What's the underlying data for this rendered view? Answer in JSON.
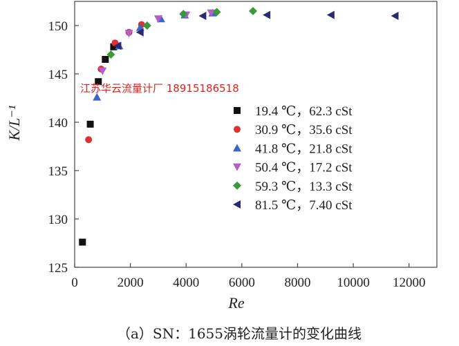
{
  "chart_data": {
    "type": "scatter",
    "xlabel": "Re",
    "ylabel": "K/L⁻¹",
    "xlim": [
      0,
      13000
    ],
    "ylim": [
      125,
      152.5
    ],
    "xticks": [
      0,
      2000,
      4000,
      6000,
      8000,
      10000,
      12000
    ],
    "yticks": [
      125,
      130,
      135,
      140,
      145,
      150
    ],
    "legend_position": "center-right",
    "grid": false,
    "series": [
      {
        "name": "19.4 ℃，62.3 cSt",
        "marker": "square",
        "color": "#111111",
        "x": [
          280,
          560,
          850,
          1100,
          1400
        ],
        "y": [
          127.6,
          139.8,
          144.2,
          146.5,
          147.8
        ]
      },
      {
        "name": "30.9 ℃，35.6 cSt",
        "marker": "circle",
        "color": "#e03030",
        "x": [
          500,
          950,
          1450,
          1950,
          2400
        ],
        "y": [
          138.2,
          145.5,
          148.2,
          149.3,
          150.1
        ]
      },
      {
        "name": "41.8 ℃，21.8 cSt",
        "marker": "triangle-up",
        "color": "#3a66c8",
        "x": [
          800,
          1600,
          2350,
          3100,
          3950,
          4950
        ],
        "y": [
          142.6,
          147.9,
          149.8,
          150.7,
          151.1,
          151.3
        ]
      },
      {
        "name": "50.4 ℃，17.2 cSt",
        "marker": "triangle-down",
        "color": "#b060c8",
        "x": [
          1000,
          1950,
          3000,
          4000,
          4900
        ],
        "y": [
          145.3,
          149.2,
          150.7,
          151.1,
          151.3
        ]
      },
      {
        "name": "59.3 ℃，13.3 cSt",
        "marker": "diamond",
        "color": "#3a9a3a",
        "x": [
          1300,
          2600,
          3900,
          5100,
          6400
        ],
        "y": [
          147.0,
          150.0,
          151.2,
          151.4,
          151.5
        ]
      },
      {
        "name": "81.5 ℃，7.40 cSt",
        "marker": "triangle-left",
        "color": "#2a2a70",
        "x": [
          1550,
          2350,
          4600,
          6900,
          9200,
          11500
        ],
        "y": [
          147.9,
          149.3,
          151.0,
          151.1,
          151.1,
          151.0
        ]
      }
    ]
  },
  "watermark": "江苏华云流量计厂  18915186518",
  "caption": "（a）SN：1655涡轮流量计的变化曲线"
}
